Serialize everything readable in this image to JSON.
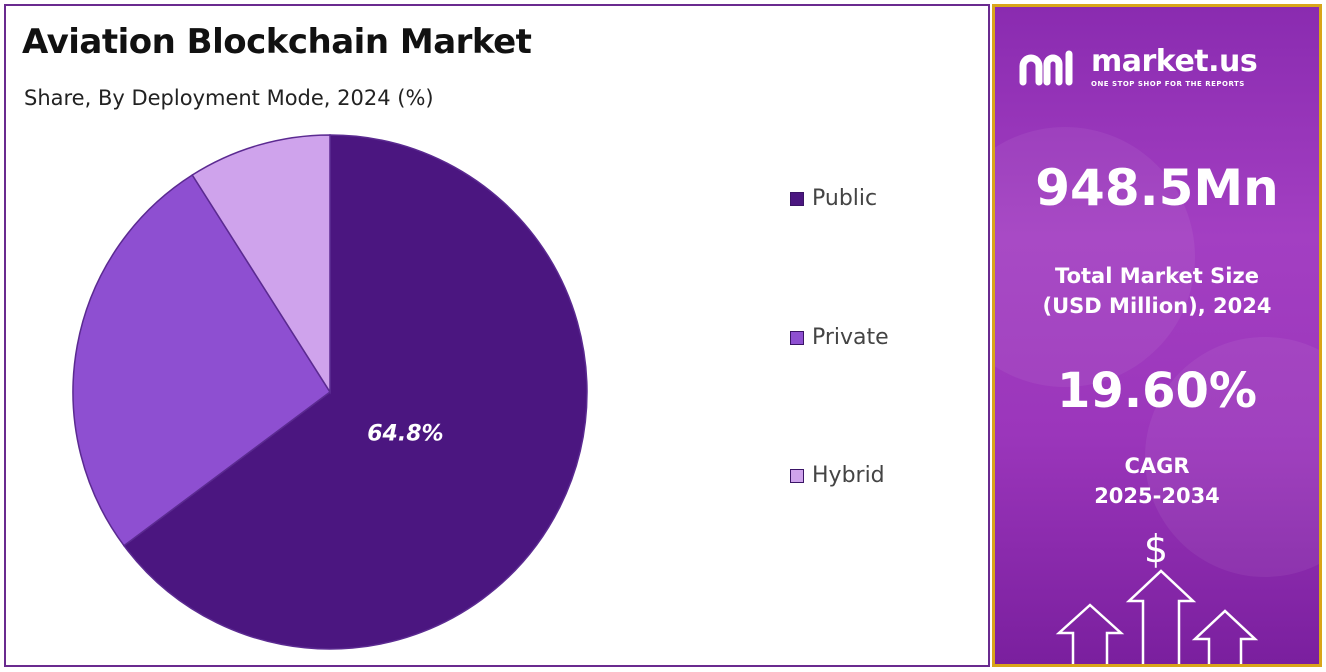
{
  "header": {
    "title": "Aviation Blockchain Market",
    "subtitle": "Share, By Deployment Mode, 2024 (%)"
  },
  "chart_data": {
    "type": "pie",
    "title": "Aviation Blockchain Market",
    "subtitle": "Share, By Deployment Mode, 2024 (%)",
    "categories": [
      "Public",
      "Private",
      "Hybrid"
    ],
    "values": [
      64.8,
      26.2,
      9.0
    ],
    "colors": [
      "#4b1680",
      "#8e4fd1",
      "#cfa3ec"
    ],
    "data_labels": [
      "64.8%",
      "",
      ""
    ],
    "legend_position": "right",
    "start_angle": "top",
    "direction": "clockwise"
  },
  "legend": {
    "items": [
      {
        "label": "Public",
        "color": "#4b1680"
      },
      {
        "label": "Private",
        "color": "#8e4fd1"
      },
      {
        "label": "Hybrid",
        "color": "#cfa3ec"
      }
    ]
  },
  "sidebar": {
    "logo_name": "market.us",
    "logo_tagline": "ONE STOP SHOP FOR THE REPORTS",
    "market_size_value": "948.5Mn",
    "market_size_label_line1": "Total Market Size",
    "market_size_label_line2": "(USD Million), 2024",
    "cagr_value": "19.60%",
    "cagr_label_line1": "CAGR",
    "cagr_label_line2": "2025-2034",
    "dollar_symbol": "$",
    "accent_border_color": "#d9a51a",
    "panel_color": "#9b36bb"
  }
}
